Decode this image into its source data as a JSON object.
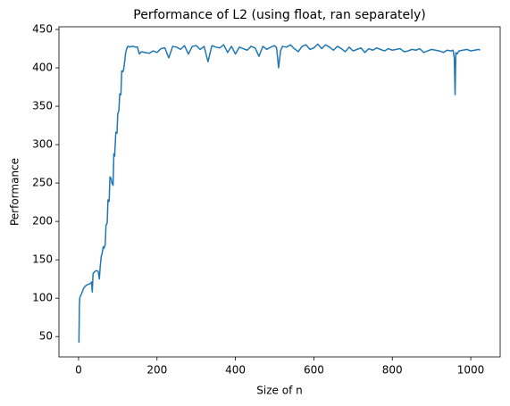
{
  "chart_data": {
    "type": "line",
    "title": "Performance of L2 (using float, ran separately)",
    "x_label": "Size of n",
    "y_label": "Performance",
    "color": "#1f77b4",
    "x": [
      1,
      2,
      3,
      5,
      8,
      12,
      16,
      20,
      25,
      30,
      33,
      35,
      37,
      40,
      45,
      50,
      53,
      55,
      58,
      60,
      63,
      65,
      68,
      70,
      73,
      75,
      78,
      80,
      83,
      85,
      88,
      90,
      92,
      95,
      98,
      100,
      103,
      105,
      108,
      110,
      113,
      115,
      118,
      120,
      123,
      125,
      128,
      130,
      135,
      140,
      145,
      150,
      155,
      160,
      170,
      180,
      190,
      200,
      210,
      220,
      230,
      240,
      250,
      260,
      270,
      280,
      290,
      300,
      310,
      320,
      330,
      340,
      350,
      360,
      370,
      380,
      390,
      400,
      410,
      420,
      430,
      440,
      450,
      460,
      470,
      480,
      490,
      500,
      505,
      510,
      515,
      520,
      530,
      540,
      550,
      560,
      570,
      580,
      590,
      600,
      610,
      620,
      630,
      640,
      650,
      660,
      670,
      680,
      690,
      700,
      710,
      720,
      730,
      740,
      750,
      760,
      770,
      780,
      790,
      800,
      810,
      820,
      830,
      840,
      850,
      860,
      870,
      880,
      890,
      900,
      910,
      920,
      930,
      940,
      950,
      955,
      958,
      960,
      962,
      965,
      970,
      980,
      990,
      1000,
      1010,
      1020,
      1024
    ],
    "values": [
      42,
      88,
      100,
      103,
      106,
      112,
      115,
      117,
      118,
      119,
      121,
      108,
      132,
      134,
      136,
      135,
      125,
      140,
      155,
      158,
      167,
      165,
      170,
      195,
      198,
      228,
      226,
      258,
      256,
      250,
      247,
      288,
      285,
      316,
      315,
      340,
      345,
      366,
      365,
      396,
      395,
      398,
      410,
      420,
      425,
      428,
      428,
      427,
      428,
      428,
      427,
      427,
      418,
      421,
      420,
      419,
      422,
      420,
      425,
      426,
      413,
      428,
      427,
      424,
      429,
      418,
      428,
      429,
      424,
      428,
      408,
      429,
      427,
      426,
      430,
      420,
      428,
      418,
      427,
      425,
      423,
      428,
      426,
      415,
      428,
      424,
      427,
      429,
      426,
      400,
      422,
      428,
      427,
      430,
      425,
      421,
      428,
      430,
      424,
      426,
      431,
      425,
      430,
      427,
      423,
      428,
      425,
      421,
      427,
      422,
      424,
      426,
      420,
      425,
      423,
      426,
      424,
      422,
      425,
      423,
      424,
      425,
      421,
      422,
      424,
      423,
      425,
      420,
      422,
      424,
      423,
      422,
      420,
      423,
      422,
      423,
      413,
      365,
      420,
      418,
      422,
      423,
      424,
      422,
      423,
      424,
      423
    ],
    "xlim": [
      -50,
      1075
    ],
    "ylim": [
      23.5,
      453.5
    ],
    "xticks": [
      0,
      200,
      400,
      600,
      800,
      1000
    ],
    "yticks": [
      50,
      100,
      150,
      200,
      250,
      300,
      350,
      400,
      450
    ],
    "grid": false
  }
}
